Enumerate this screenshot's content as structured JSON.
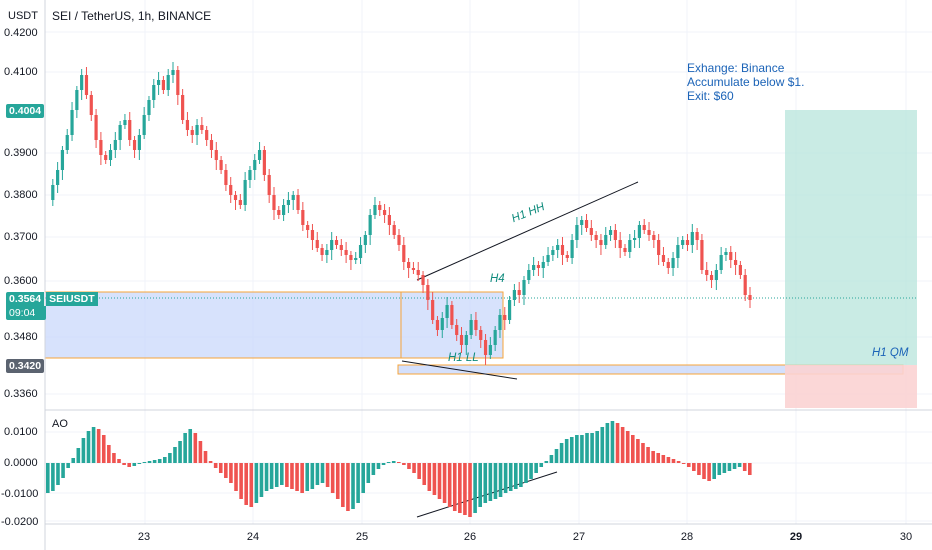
{
  "axis": {
    "currency": "USDT",
    "price_ticks": [
      "0.4200",
      "0.4100",
      "0.3900",
      "0.3800",
      "0.3700",
      "0.3600",
      "0.3480",
      "0.3360"
    ],
    "ao_ticks": [
      "0.0100",
      "0.0000",
      "-0.0100",
      "-0.0200"
    ],
    "date_ticks": [
      "23",
      "24",
      "25",
      "26",
      "27",
      "28",
      "29",
      "30"
    ]
  },
  "header": {
    "symbol": "SEI / TetherUS, 1h, BINANCE"
  },
  "tags": {
    "top_price": "0.4004",
    "current_price": "0.3564",
    "current_label": "SEIUSDT",
    "countdown": "09:04",
    "stop_price": "0.3420"
  },
  "annotations": {
    "hh": "H1 HH",
    "h4": "H4",
    "ll": "H1 LL",
    "qm": "H1 QM",
    "note": [
      "Exhange: Binance",
      "Accumulate below $1.",
      "Exit: $60"
    ]
  },
  "indicator": {
    "name": "AO"
  },
  "colors": {
    "up": "#26a69a",
    "down": "#ef5350",
    "box": "#f7a43a",
    "zone": "#c9d8fb",
    "target": "#b7e4db",
    "stop": "#fbd3d3",
    "note": "#1b63b7"
  }
}
